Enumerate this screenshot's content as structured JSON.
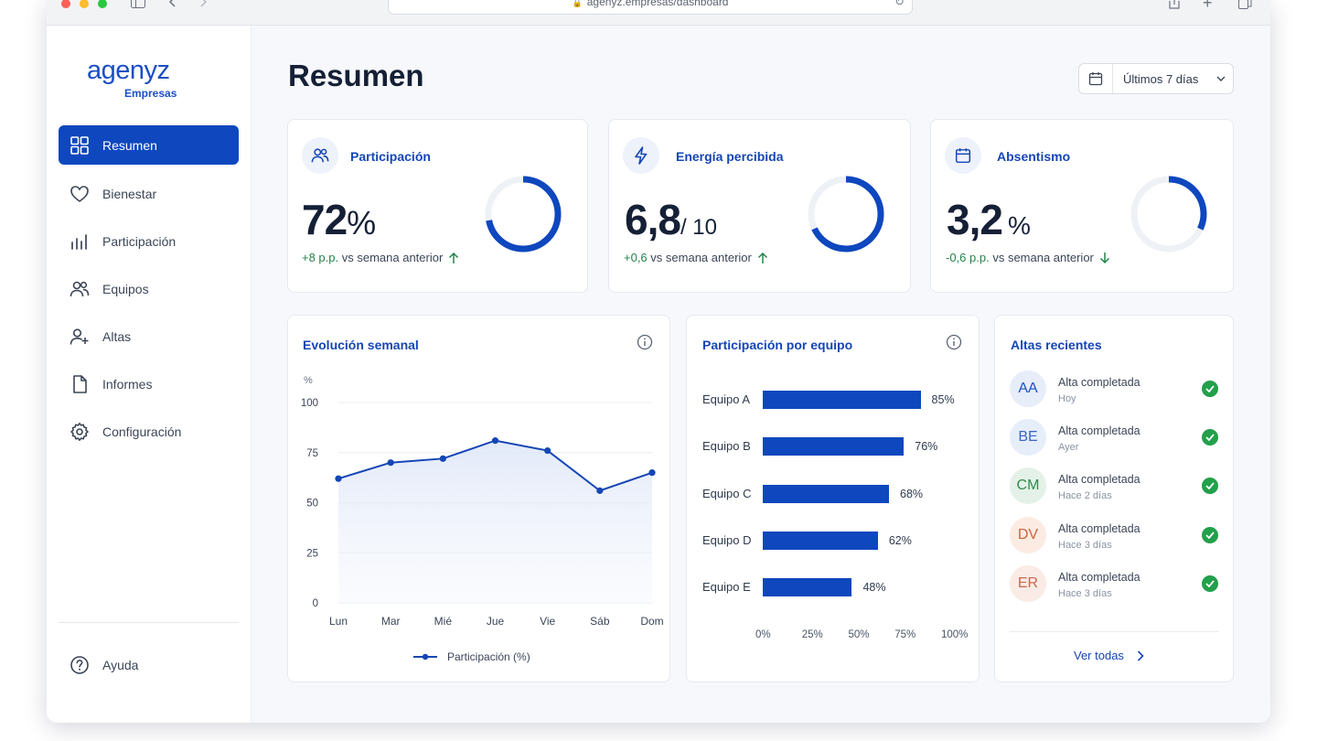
{
  "browser": {
    "url": "agenyz.empresas/dashboard"
  },
  "brand": {
    "name": "agenyz",
    "subtitle": "Empresas",
    "color": "#1b4fc4"
  },
  "sidebar": {
    "items": [
      {
        "label": "Resumen",
        "icon": "grid-icon",
        "active": true
      },
      {
        "label": "Bienestar",
        "icon": "heart-icon",
        "active": false
      },
      {
        "label": "Participación",
        "icon": "bar-chart-icon",
        "active": false
      },
      {
        "label": "Equipos",
        "icon": "users-icon",
        "active": false
      },
      {
        "label": "Altas",
        "icon": "user-plus-icon",
        "active": false
      },
      {
        "label": "Informes",
        "icon": "document-icon",
        "active": false
      },
      {
        "label": "Configuración",
        "icon": "gear-icon",
        "active": false
      }
    ],
    "help_label": "Ayuda"
  },
  "header": {
    "title": "Resumen",
    "date_range": "Últimos 7 días"
  },
  "kpis": [
    {
      "title": "Participación",
      "value": "72",
      "unit": "%",
      "delta": "+8 p.p.",
      "delta_suffix": "vs semana anterior",
      "trend": "up",
      "gauge": 0.72,
      "icon": "users-icon"
    },
    {
      "title": "Energía percibida",
      "value": "6,8",
      "unit": "/ 10",
      "delta": "+0,6",
      "delta_suffix": "vs semana anterior",
      "trend": "up",
      "gauge": 0.68,
      "icon": "bolt-icon"
    },
    {
      "title": "Absentismo",
      "value": "3,2",
      "unit": "%",
      "delta": "-0,6 p.p.",
      "delta_suffix": "vs semana anterior",
      "trend": "down",
      "gauge": 0.32,
      "icon": "calendar-icon"
    }
  ],
  "weekly_chart": {
    "title": "Evolución semanal",
    "legend": "Participación (%)",
    "chart_data": {
      "type": "line",
      "ylabel": "%",
      "ylim": [
        0,
        100
      ],
      "yticks": [
        0,
        25,
        50,
        75,
        100
      ],
      "categories": [
        "Lun",
        "Mar",
        "Mié",
        "Jue",
        "Vie",
        "Sáb",
        "Dom"
      ],
      "series": [
        {
          "name": "Participación (%)",
          "values": [
            62,
            70,
            72,
            81,
            76,
            56,
            65
          ]
        }
      ],
      "grid": true,
      "legend_position": "bottom"
    }
  },
  "team_chart": {
    "title": "Participación por equipo",
    "chart_data": {
      "type": "bar",
      "orientation": "horizontal",
      "categories": [
        "Equipo A",
        "Equipo B",
        "Equipo C",
        "Equipo D",
        "Equipo E"
      ],
      "values": [
        85,
        76,
        68,
        62,
        48
      ],
      "value_labels": [
        "85%",
        "76%",
        "68%",
        "62%",
        "48%"
      ],
      "xlim": [
        0,
        100
      ],
      "xticks": [
        "0%",
        "25%",
        "50%",
        "75%",
        "100%"
      ]
    }
  },
  "recent_hires": {
    "title": "Altas recientes",
    "items": [
      {
        "initials": "AA",
        "title": "Alta completada",
        "time": "Hoy",
        "bg": "#e7edf9",
        "fg": "#1b4fc4"
      },
      {
        "initials": "BE",
        "title": "Alta completada",
        "time": "Ayer",
        "bg": "#e6eefa",
        "fg": "#3a66c4"
      },
      {
        "initials": "CM",
        "title": "Alta completada",
        "time": "Hace 2 días",
        "bg": "#e4f1e8",
        "fg": "#2f8a4e"
      },
      {
        "initials": "DV",
        "title": "Alta completada",
        "time": "Hace 3 días",
        "bg": "#fbebe2",
        "fg": "#c8663a"
      },
      {
        "initials": "ER",
        "title": "Alta completada",
        "time": "Hace 3 días",
        "bg": "#faebe6",
        "fg": "#c66a4f"
      }
    ],
    "see_all": "Ver todas"
  },
  "colors": {
    "accent": "#0e47be",
    "positive": "#23844a",
    "check": "#22a04b"
  }
}
